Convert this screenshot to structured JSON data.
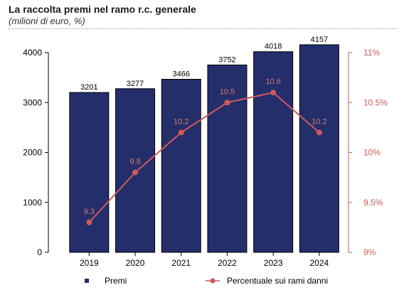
{
  "header": {
    "title": "La raccolta premi nel ramo r.c. generale",
    "subtitle": "(milioni di euro, %)"
  },
  "chart_data": {
    "type": "bar",
    "categories": [
      "2019",
      "2020",
      "2021",
      "2022",
      "2023",
      "2024"
    ],
    "series": [
      {
        "name": "Premi",
        "type": "bar",
        "axis": "left",
        "values": [
          3201,
          3277,
          3466,
          3752,
          4018,
          4157
        ],
        "color": "#242e6b"
      },
      {
        "name": "Percentuale sui rami danni",
        "type": "line",
        "axis": "right",
        "values": [
          9.3,
          9.8,
          10.2,
          10.5,
          10.6,
          10.2
        ],
        "color": "#cc5a5a"
      }
    ],
    "left_axis": {
      "ylim": [
        0,
        4000
      ],
      "ticks": [
        "0",
        "1000",
        "2000",
        "3000",
        "4000"
      ]
    },
    "right_axis": {
      "ylim": [
        9,
        11
      ],
      "ticks": [
        "9%",
        "9.5%",
        "10%",
        "10.5%",
        "11%"
      ],
      "color": "#cc5a5a"
    },
    "legend_position": "bottom",
    "grid": false
  }
}
